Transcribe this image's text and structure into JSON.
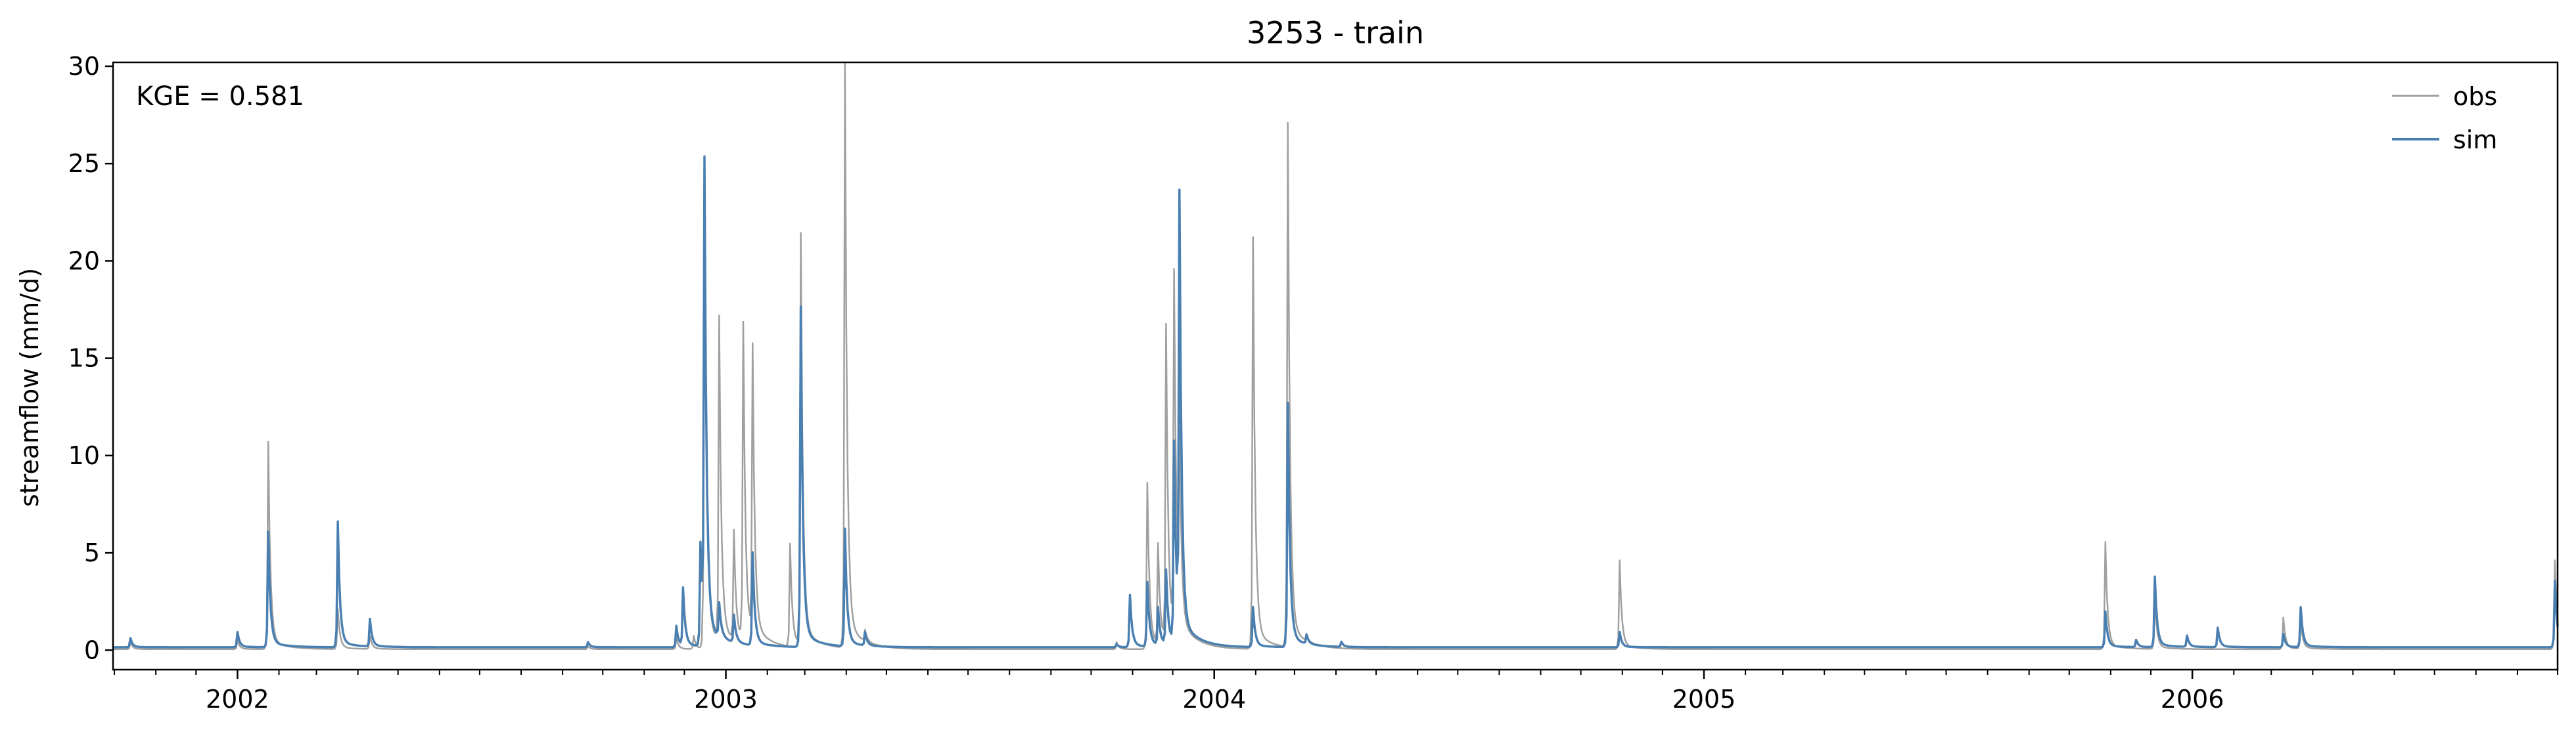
{
  "chart_data": {
    "type": "line",
    "title": "3253 - train",
    "xlabel": "",
    "ylabel": "streamflow (mm/d)",
    "annotation": "KGE = 0.581",
    "x_range": [
      "2001-09-30",
      "2006-10-01"
    ],
    "ylim": [
      -1.0,
      30.2
    ],
    "y_ticks": [
      0,
      5,
      10,
      15,
      20,
      25,
      30
    ],
    "x_ticks": [
      {
        "date": "2002-01-01",
        "label": "2002"
      },
      {
        "date": "2003-01-01",
        "label": "2003"
      },
      {
        "date": "2004-01-01",
        "label": "2004"
      },
      {
        "date": "2005-01-01",
        "label": "2005"
      },
      {
        "date": "2006-01-01",
        "label": "2006"
      }
    ],
    "grid": false,
    "legend_position": "top-right",
    "baseline": {
      "obs": 0.05,
      "sim": 0.15
    },
    "series": [
      {
        "name": "obs",
        "color": "#a0a0a0",
        "peaks": [
          [
            "2001-10-13",
            0.4
          ],
          [
            "2002-01-01",
            0.5
          ],
          [
            "2002-01-24",
            10.2
          ],
          [
            "2002-03-17",
            2.0
          ],
          [
            "2002-04-10",
            0.7
          ],
          [
            "2002-09-20",
            0.2
          ],
          [
            "2002-11-25",
            0.6
          ],
          [
            "2002-12-08",
            0.7
          ],
          [
            "2002-12-16",
            23.5
          ],
          [
            "2002-12-27",
            15.9
          ],
          [
            "2003-01-07",
            5.4
          ],
          [
            "2003-01-14",
            15.6
          ],
          [
            "2003-01-21",
            14.2
          ],
          [
            "2003-02-18",
            5.1
          ],
          [
            "2003-02-26",
            20.2
          ],
          [
            "2003-03-31",
            28.7
          ],
          [
            "2003-04-15",
            0.6
          ],
          [
            "2003-10-20",
            0.4
          ],
          [
            "2003-11-12",
            8.2
          ],
          [
            "2003-11-20",
            5.0
          ],
          [
            "2003-11-26",
            15.6
          ],
          [
            "2003-12-02",
            17.7
          ],
          [
            "2003-12-06",
            9.0
          ],
          [
            "2004-01-30",
            20.2
          ],
          [
            "2004-02-25",
            25.7
          ],
          [
            "2004-03-10",
            0.3
          ],
          [
            "2004-10-30",
            4.4
          ],
          [
            "2005-10-28",
            5.3
          ],
          [
            "2005-12-04",
            2.5
          ],
          [
            "2006-03-10",
            1.6
          ],
          [
            "2006-03-23",
            1.4
          ],
          [
            "2006-09-29",
            4.4
          ]
        ]
      },
      {
        "name": "sim",
        "color": "#4a7fb1",
        "peaks": [
          [
            "2001-10-13",
            0.6
          ],
          [
            "2002-01-01",
            0.9
          ],
          [
            "2002-01-24",
            5.8
          ],
          [
            "2002-03-17",
            6.3
          ],
          [
            "2002-04-10",
            1.5
          ],
          [
            "2002-09-20",
            0.4
          ],
          [
            "2002-11-25",
            1.2
          ],
          [
            "2002-11-30",
            3.0
          ],
          [
            "2002-12-13",
            5.2
          ],
          [
            "2002-12-16",
            23.2
          ],
          [
            "2002-12-27",
            1.8
          ],
          [
            "2003-01-07",
            1.5
          ],
          [
            "2003-01-21",
            4.7
          ],
          [
            "2003-02-26",
            16.8
          ],
          [
            "2003-03-31",
            5.9
          ],
          [
            "2003-04-15",
            0.8
          ],
          [
            "2003-10-20",
            0.3
          ],
          [
            "2003-10-30",
            2.7
          ],
          [
            "2003-11-12",
            3.3
          ],
          [
            "2003-11-20",
            2.0
          ],
          [
            "2003-11-26",
            3.8
          ],
          [
            "2003-12-02",
            10.0
          ],
          [
            "2003-12-06",
            21.3
          ],
          [
            "2004-01-30",
            2.1
          ],
          [
            "2004-02-25",
            12.1
          ],
          [
            "2004-03-10",
            0.6
          ],
          [
            "2004-04-05",
            0.4
          ],
          [
            "2004-10-30",
            0.9
          ],
          [
            "2005-10-28",
            1.9
          ],
          [
            "2005-11-20",
            0.5
          ],
          [
            "2005-12-04",
            3.6
          ],
          [
            "2005-12-28",
            0.7
          ],
          [
            "2006-01-20",
            1.1
          ],
          [
            "2006-03-10",
            0.8
          ],
          [
            "2006-03-23",
            2.1
          ],
          [
            "2006-09-29",
            3.4
          ]
        ]
      }
    ]
  }
}
